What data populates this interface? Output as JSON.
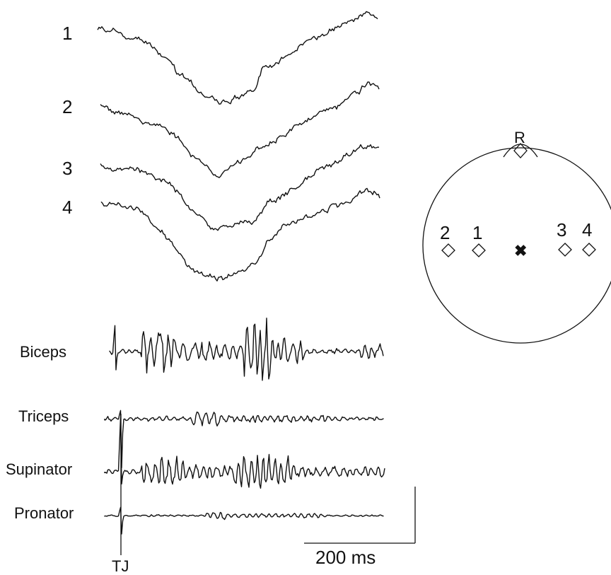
{
  "traces": [
    {
      "label": "1"
    },
    {
      "label": "2"
    },
    {
      "label": "3"
    },
    {
      "label": "4"
    }
  ],
  "emg": [
    {
      "label": "Biceps"
    },
    {
      "label": "Triceps"
    },
    {
      "label": "Supinator"
    },
    {
      "label": "Pronator"
    }
  ],
  "marker": {
    "label": "TJ"
  },
  "scale_bar": {
    "time_label": "200 ms"
  },
  "head_map": {
    "reference_label": "R",
    "electrodes": [
      {
        "label": "2"
      },
      {
        "label": "1"
      },
      {
        "label": "3"
      },
      {
        "label": "4"
      }
    ],
    "center_symbol": "✖"
  }
}
